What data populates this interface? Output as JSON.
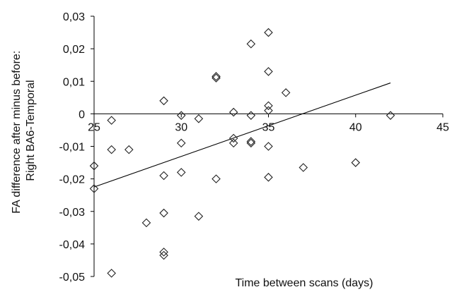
{
  "chart_data": {
    "type": "scatter",
    "title": "",
    "xlabel": "Time between scans (days)",
    "ylabel": [
      "FA difference after minus before:",
      "Right BA6-Temporal"
    ],
    "xlim": [
      25,
      45
    ],
    "ylim": [
      -0.05,
      0.03
    ],
    "x_ticks": [
      25,
      30,
      35,
      40,
      45
    ],
    "y_ticks": [
      0.03,
      0.02,
      0.01,
      0,
      -0.01,
      -0.02,
      -0.03,
      -0.04,
      -0.05
    ],
    "x_tick_labels": [
      "25",
      "30",
      "35",
      "40",
      "45"
    ],
    "y_tick_labels": [
      "0,03",
      "0,02",
      "0,01",
      "0",
      "-0,01",
      "-0,02",
      "-0,03",
      "-0,04",
      "-0,05"
    ],
    "grid": false,
    "legend": "none",
    "marker": "diamond",
    "points": [
      {
        "x": 25,
        "y": -0.016
      },
      {
        "x": 25,
        "y": -0.023
      },
      {
        "x": 26,
        "y": -0.002
      },
      {
        "x": 26,
        "y": -0.011
      },
      {
        "x": 26,
        "y": -0.049
      },
      {
        "x": 27,
        "y": -0.011
      },
      {
        "x": 28,
        "y": -0.0335
      },
      {
        "x": 29,
        "y": 0.004
      },
      {
        "x": 29,
        "y": -0.019
      },
      {
        "x": 29,
        "y": -0.0305
      },
      {
        "x": 29,
        "y": -0.0425
      },
      {
        "x": 29,
        "y": -0.0435
      },
      {
        "x": 30,
        "y": -0.0005
      },
      {
        "x": 30,
        "y": -0.009
      },
      {
        "x": 30,
        "y": -0.018
      },
      {
        "x": 31,
        "y": -0.0015
      },
      {
        "x": 31,
        "y": -0.0315
      },
      {
        "x": 32,
        "y": 0.011
      },
      {
        "x": 32,
        "y": 0.0115
      },
      {
        "x": 32,
        "y": -0.02
      },
      {
        "x": 33,
        "y": 0.0005
      },
      {
        "x": 33,
        "y": -0.0075
      },
      {
        "x": 33,
        "y": -0.009
      },
      {
        "x": 34,
        "y": 0.0215
      },
      {
        "x": 34,
        "y": -0.0005
      },
      {
        "x": 34,
        "y": -0.0085
      },
      {
        "x": 34,
        "y": -0.009
      },
      {
        "x": 35,
        "y": 0.025
      },
      {
        "x": 35,
        "y": 0.013
      },
      {
        "x": 35,
        "y": 0.0025
      },
      {
        "x": 35,
        "y": 0.001
      },
      {
        "x": 35,
        "y": -0.01
      },
      {
        "x": 35,
        "y": -0.0195
      },
      {
        "x": 36,
        "y": 0.0065
      },
      {
        "x": 37,
        "y": -0.0165
      },
      {
        "x": 40,
        "y": -0.015
      },
      {
        "x": 42,
        "y": -0.0005
      }
    ],
    "trendline": {
      "x": [
        25,
        42
      ],
      "y": [
        -0.0225,
        0.0095
      ]
    }
  }
}
